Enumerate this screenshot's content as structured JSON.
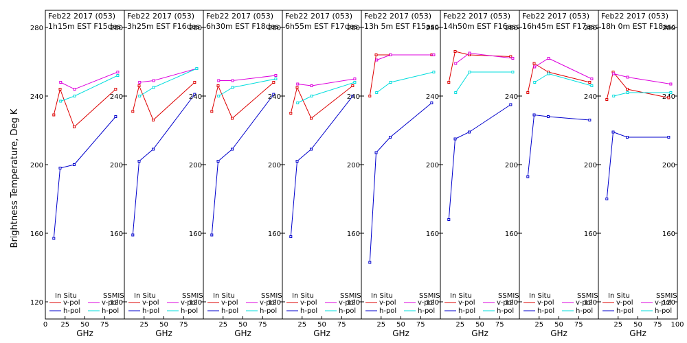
{
  "chart_data": {
    "type": "line",
    "ylabel": "Brightness Temperature, Deg K",
    "xlabel": "GHz",
    "ylim": [
      110,
      290
    ],
    "xlim": [
      0,
      100
    ],
    "x_ticks": [
      0,
      25,
      50,
      75,
      100
    ],
    "x_tick_labels": [
      "0",
      "25",
      "50",
      "75",
      "100"
    ],
    "y_ticks": [
      120,
      160,
      200,
      240,
      280
    ],
    "y_tick_labels": [
      "120",
      "160",
      "200",
      "240",
      "280"
    ],
    "legend": {
      "insitu_title": "In Situ",
      "ssmis_title": "SSMIS",
      "entries": [
        "v-pol",
        "h-pol",
        "v-pol",
        "h-pol"
      ]
    },
    "series_styles": {
      "insitu_v": "#dd0000",
      "insitu_h": "#0000cc",
      "ssmis_v": "#dd00dd",
      "ssmis_h": "#00dddd"
    },
    "panels": [
      {
        "title1": "Feb22 2017 (053)",
        "title2": "1h15m EST F15des",
        "insitu_v": {
          "x": [
            10.7,
            18.7,
            36.5,
            89.0
          ],
          "y": [
            229,
            244,
            222,
            244
          ]
        },
        "insitu_h": {
          "x": [
            10.7,
            18.7,
            36.5,
            89.0
          ],
          "y": [
            157,
            198,
            200,
            228
          ]
        },
        "ssmis_v": {
          "x": [
            19.35,
            37.0,
            91.655
          ],
          "y": [
            248,
            244,
            254
          ]
        },
        "ssmis_h": {
          "x": [
            19.35,
            37.0,
            91.655
          ],
          "y": [
            237,
            240,
            252
          ]
        }
      },
      {
        "title1": "Feb22 2017 (053)",
        "title2": "3h25m EST F16des",
        "insitu_v": {
          "x": [
            10.7,
            18.7,
            36.5,
            89.0
          ],
          "y": [
            231,
            246,
            226,
            248
          ]
        },
        "insitu_h": {
          "x": [
            10.7,
            18.7,
            36.5,
            89.0
          ],
          "y": [
            159,
            202,
            209,
            241
          ]
        },
        "ssmis_v": {
          "x": [
            19.35,
            37.0,
            91.655
          ],
          "y": [
            248,
            249,
            256
          ]
        },
        "ssmis_h": {
          "x": [
            19.35,
            37.0,
            91.655
          ],
          "y": [
            240,
            245,
            256
          ]
        }
      },
      {
        "title1": "Feb22 2017 (053)",
        "title2": "6h30m EST F18des",
        "insitu_v": {
          "x": [
            10.7,
            18.7,
            36.5,
            89.0
          ],
          "y": [
            231,
            246,
            227,
            248
          ]
        },
        "insitu_h": {
          "x": [
            10.7,
            18.7,
            36.5,
            89.0
          ],
          "y": [
            159,
            202,
            209,
            241
          ]
        },
        "ssmis_v": {
          "x": [
            19.35,
            37.0,
            91.655
          ],
          "y": [
            249,
            249,
            252
          ]
        },
        "ssmis_h": {
          "x": [
            19.35,
            37.0,
            91.655
          ],
          "y": [
            240,
            245,
            250
          ]
        }
      },
      {
        "title1": "Feb22 2017 (053)",
        "title2": "6h55m EST F17des",
        "insitu_v": {
          "x": [
            10.7,
            18.7,
            36.5,
            89.0
          ],
          "y": [
            230,
            245,
            227,
            246
          ]
        },
        "insitu_h": {
          "x": [
            10.7,
            18.7,
            36.5,
            89.0
          ],
          "y": [
            158,
            202,
            209,
            240
          ]
        },
        "ssmis_v": {
          "x": [
            19.35,
            37.0,
            91.655
          ],
          "y": [
            247,
            246,
            250
          ]
        },
        "ssmis_h": {
          "x": [
            19.35,
            37.0,
            91.655
          ],
          "y": [
            236,
            240,
            248
          ]
        }
      },
      {
        "title1": "Feb22 2017 (053)",
        "title2": "13h 5m EST F15asc",
        "insitu_v": {
          "x": [
            10.7,
            18.7,
            36.5,
            89.0
          ],
          "y": [
            240,
            264,
            264,
            264
          ]
        },
        "insitu_h": {
          "x": [
            10.7,
            18.7,
            36.5,
            89.0
          ],
          "y": [
            143,
            207,
            216,
            236
          ]
        },
        "ssmis_v": {
          "x": [
            19.35,
            37.0,
            91.655
          ],
          "y": [
            261,
            264,
            264
          ]
        },
        "ssmis_h": {
          "x": [
            19.35,
            37.0,
            91.655
          ],
          "y": [
            242,
            248,
            254
          ]
        }
      },
      {
        "title1": "Feb22 2017 (053)",
        "title2": "14h50m EST F16asc",
        "insitu_v": {
          "x": [
            10.7,
            18.7,
            36.5,
            89.0
          ],
          "y": [
            248,
            266,
            264,
            263
          ]
        },
        "insitu_h": {
          "x": [
            10.7,
            18.7,
            36.5,
            89.0
          ],
          "y": [
            168,
            215,
            219,
            235
          ]
        },
        "ssmis_v": {
          "x": [
            19.35,
            37.0,
            91.655
          ],
          "y": [
            259,
            265,
            262
          ]
        },
        "ssmis_h": {
          "x": [
            19.35,
            37.0,
            91.655
          ],
          "y": [
            242,
            254,
            254
          ]
        }
      },
      {
        "title1": "Feb22 2017 (053)",
        "title2": "16h45m EST F17asc",
        "insitu_v": {
          "x": [
            10.7,
            18.7,
            36.5,
            89.0
          ],
          "y": [
            242,
            259,
            254,
            248
          ]
        },
        "insitu_h": {
          "x": [
            10.7,
            18.7,
            36.5,
            89.0
          ],
          "y": [
            193,
            229,
            228,
            226
          ]
        },
        "ssmis_v": {
          "x": [
            19.35,
            37.0,
            91.655
          ],
          "y": [
            257,
            262,
            250
          ]
        },
        "ssmis_h": {
          "x": [
            19.35,
            37.0,
            91.655
          ],
          "y": [
            248,
            253,
            246
          ]
        }
      },
      {
        "title1": "Feb22 2017 (053)",
        "title2": "18h 0m EST F18asc",
        "insitu_v": {
          "x": [
            10.7,
            18.7,
            36.5,
            89.0
          ],
          "y": [
            238,
            254,
            244,
            239
          ]
        },
        "insitu_h": {
          "x": [
            10.7,
            18.7,
            36.5,
            89.0
          ],
          "y": [
            180,
            219,
            216,
            216
          ]
        },
        "ssmis_v": {
          "x": [
            19.35,
            37.0,
            91.655
          ],
          "y": [
            253,
            251,
            247
          ]
        },
        "ssmis_h": {
          "x": [
            19.35,
            37.0,
            91.655
          ],
          "y": [
            240,
            242,
            242
          ]
        }
      }
    ]
  }
}
